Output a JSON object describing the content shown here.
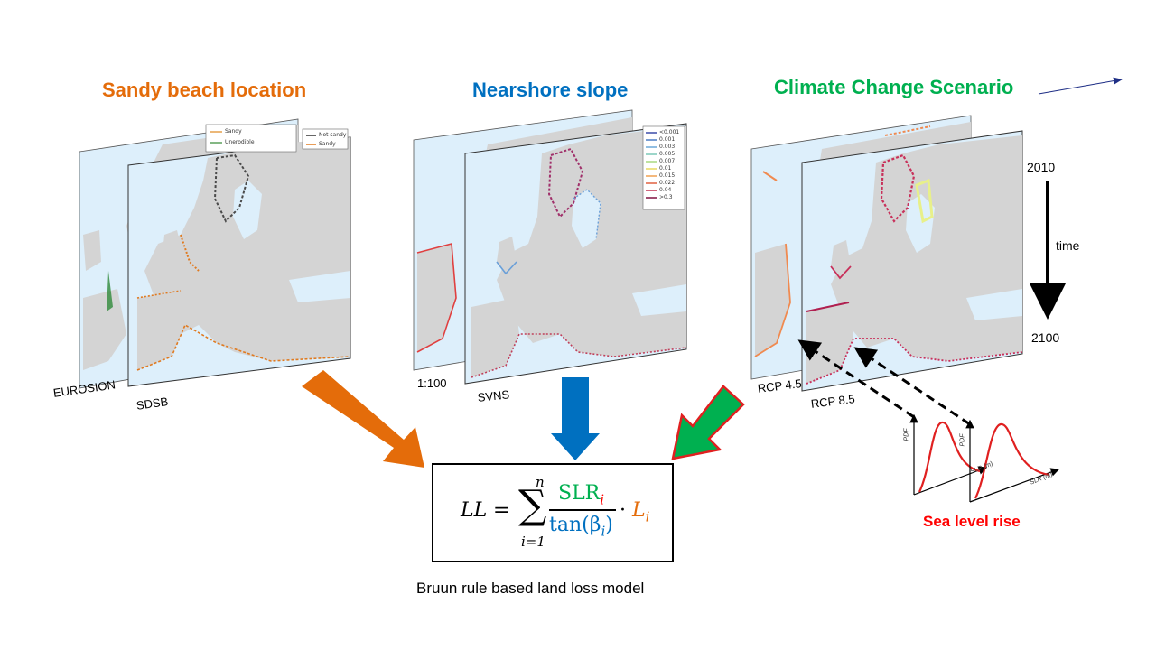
{
  "titles": {
    "sandy": "Sandy beach location",
    "nearshore": "Nearshore slope",
    "climate": "Climate Change Scenario"
  },
  "colors": {
    "sandy": "#E46C0A",
    "nearshore": "#0070C0",
    "climate": "#00B050",
    "slr": "#FF0000",
    "sea": "#DDEFFB",
    "land": "#D4D4D4"
  },
  "maps": {
    "sandy_back": "EUROSION",
    "sandy_front": "SDSB",
    "slope_back": "1:100",
    "slope_front": "SVNS",
    "climate_back": "RCP 4.5",
    "climate_front": "RCP 8.5"
  },
  "legends": {
    "sandy_back": [
      "Sandy",
      "Unerodible"
    ],
    "sandy_front": [
      "Not sandy",
      "Sandy"
    ],
    "slope": [
      "<0.001",
      "0.001",
      "0.003",
      "0.005",
      "0.007",
      "0.01",
      "0.015",
      "0.022",
      "0.04",
      ">0.3"
    ]
  },
  "timeline": {
    "start": "2010",
    "label": "time",
    "end": "2100"
  },
  "pdf_plots": {
    "ylabel": "PDF",
    "xlabel": "SLR (m)"
  },
  "sea_level_label": "Sea level rise",
  "formula": {
    "lhs": "LL",
    "equals": "=",
    "sum_upper": "n",
    "sum_lower": "i=1",
    "numerator_main": "SLR",
    "numerator_sub": "i",
    "denominator": "tan(β",
    "denominator_sub": "i",
    "denominator_close": ")",
    "dot": "·",
    "L": "L",
    "L_sub": "i"
  },
  "caption": "Bruun rule based land loss model"
}
